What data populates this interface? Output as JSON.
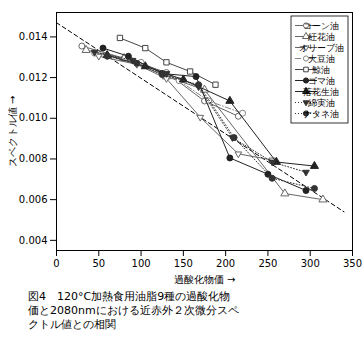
{
  "chart_data": {
    "type": "line",
    "xlabel": "過酸化物価",
    "ylabel": "スペクトル値",
    "caption": "図4　120°C加熱食用油脂9種の過酸化物\n価と2080nmにおける近赤外２次微分スペ\nクトル値との相関",
    "xlim": [
      0,
      350
    ],
    "ylim": [
      0.0035,
      0.0152
    ],
    "xticks": [
      0,
      50,
      100,
      150,
      200,
      250,
      300,
      350
    ],
    "yticks": [
      0.004,
      0.006,
      0.008,
      {
        "value": 0.01,
        "label": "0.010"
      },
      0.012,
      0.014
    ],
    "grid": false,
    "legend": "upper right",
    "series": [
      {
        "name": "コーン油",
        "marker": "circle-open",
        "line_style": "solid",
        "color": "#666666",
        "x": [
          30,
          80,
          130,
          175,
          215
        ],
        "values": [
          0.01355,
          0.01295,
          0.01225,
          0.01085,
          0.0101
        ]
      },
      {
        "name": "紅花油",
        "marker": "triangle-open",
        "line_style": "solid",
        "color": "#666666",
        "x": [
          35,
          80,
          130,
          175,
          270,
          315
        ],
        "values": [
          0.01335,
          0.01295,
          0.01205,
          0.0114,
          0.0063,
          0.006
        ]
      },
      {
        "name": "オリーブ油",
        "marker": "triangle-down-open",
        "line_style": "solid",
        "color": "#666666",
        "x": [
          50,
          95,
          130,
          170,
          215,
          255
        ],
        "values": [
          0.01305,
          0.01265,
          0.01195,
          0.01005,
          0.00825,
          0.00795
        ]
      },
      {
        "name": "大豆油",
        "marker": "circle-open",
        "line_style": "dashdot",
        "color": "#888888",
        "x": [
          45,
          100,
          145,
          180,
          220
        ],
        "values": [
          0.0132,
          0.01275,
          0.01185,
          0.01085,
          0.01025
        ]
      },
      {
        "name": "鯨油",
        "marker": "square-open",
        "line_style": "solid",
        "color": "#444444",
        "x": [
          75,
          105,
          130,
          158,
          188
        ],
        "values": [
          0.01395,
          0.01345,
          0.01275,
          0.0123,
          0.01165
        ]
      },
      {
        "name": "ゴマ油",
        "marker": "circle",
        "line_style": "solid",
        "color": "#222222",
        "x": [
          55,
          85,
          125,
          165,
          205,
          250,
          295
        ],
        "values": [
          0.01345,
          0.01305,
          0.0122,
          0.01205,
          0.00805,
          0.00725,
          0.00645
        ]
      },
      {
        "name": "落花生油",
        "marker": "triangle",
        "line_style": "solid",
        "color": "#222222",
        "x": [
          60,
          105,
          150,
          205,
          260,
          305
        ],
        "values": [
          0.0131,
          0.01255,
          0.0119,
          0.01085,
          0.00785,
          0.00765
        ]
      },
      {
        "name": "綿実油",
        "marker": "triangle-down",
        "line_style": "dotted",
        "color": "#333333",
        "x": [
          45,
          90,
          130,
          168,
          208,
          255,
          295
        ],
        "values": [
          0.01325,
          0.01285,
          0.0122,
          0.01155,
          0.00905,
          0.00785,
          0.00735
        ]
      },
      {
        "name": "ナタネ油",
        "marker": "circle",
        "line_style": "dotted",
        "color": "#333333",
        "x": [
          60,
          95,
          125,
          168,
          210,
          255,
          305
        ],
        "values": [
          0.01305,
          0.0127,
          0.01215,
          0.01165,
          0.00905,
          0.00705,
          0.00655
        ]
      }
    ],
    "regression": {
      "x": [
        0,
        340
      ],
      "values": [
        0.0147,
        0.0054
      ],
      "color": "#000000",
      "line_style": "dashed"
    }
  }
}
